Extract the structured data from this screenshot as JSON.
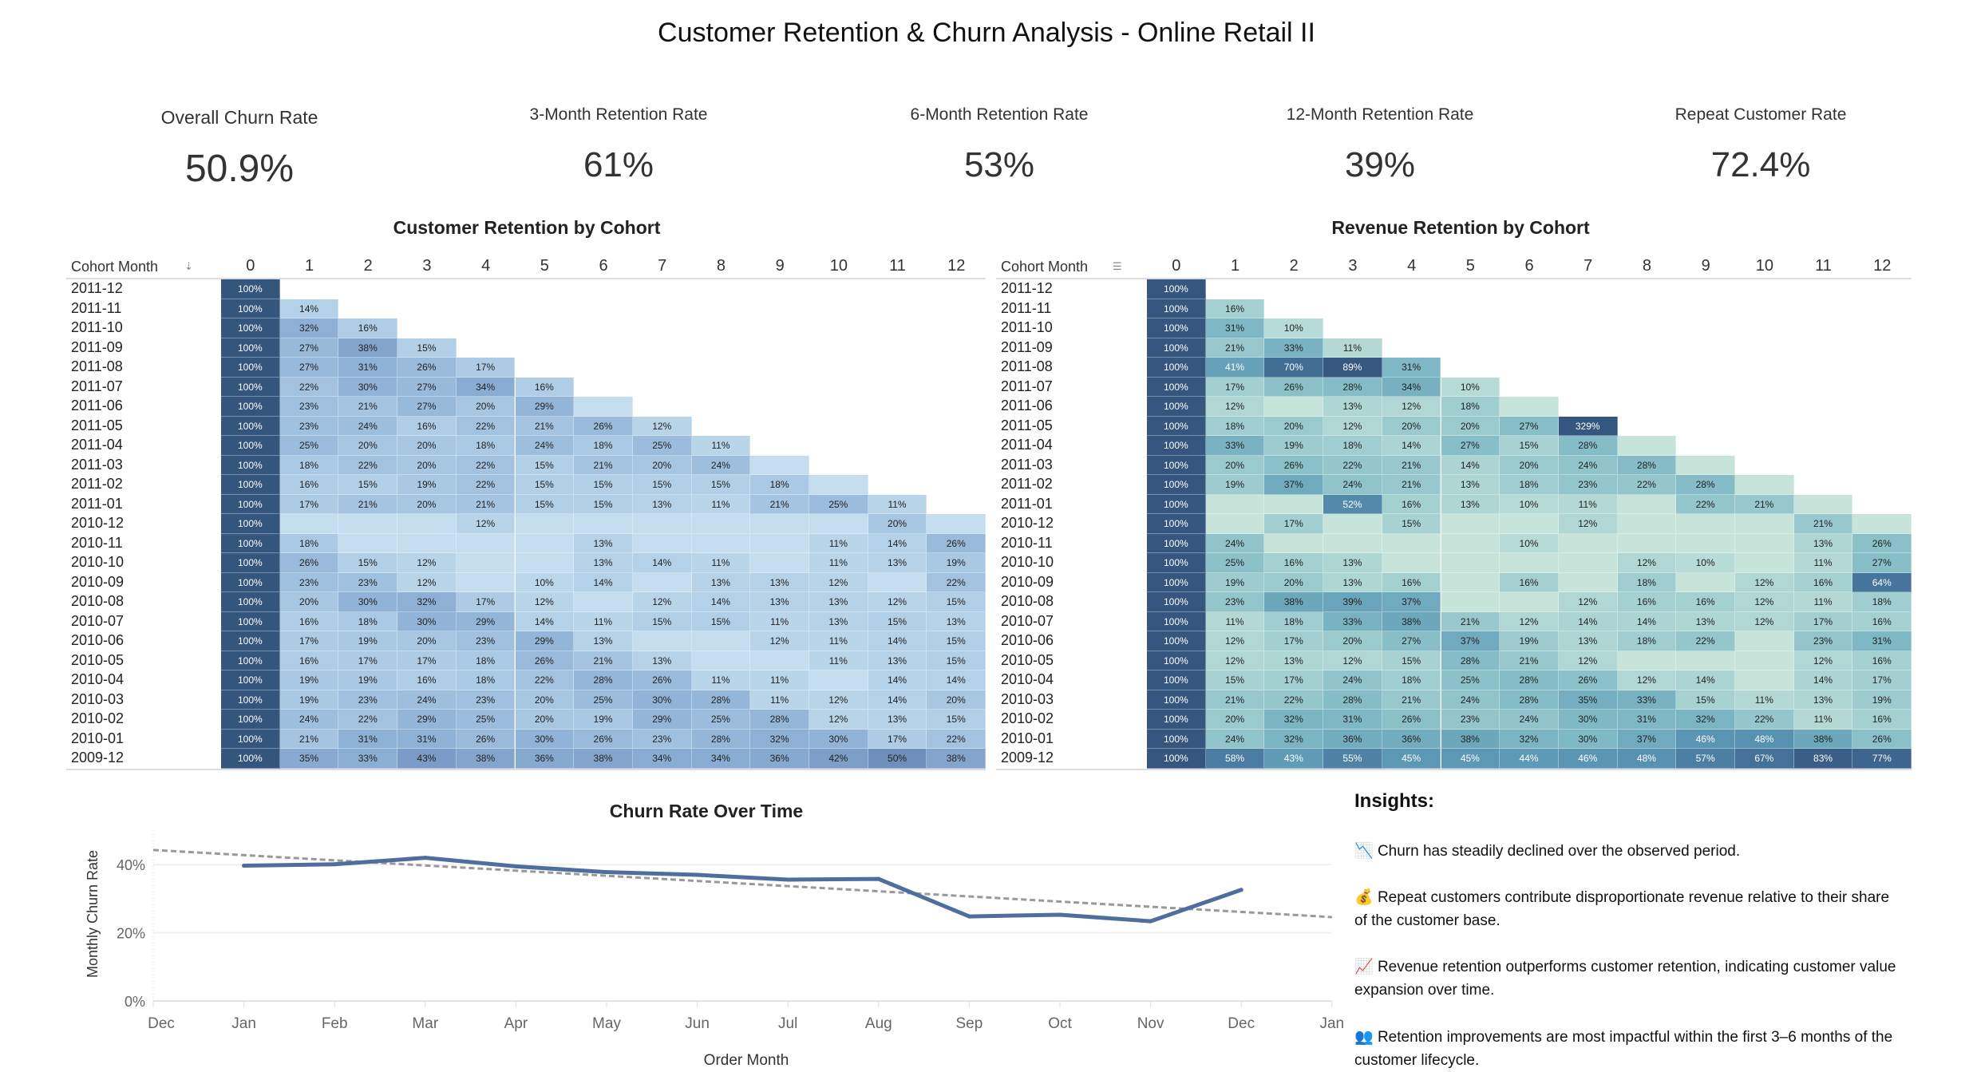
{
  "title": "Customer Retention & Churn Analysis - Online Retail II",
  "kpis": [
    {
      "label": "Overall Churn Rate",
      "value": "50.9%"
    },
    {
      "label": "3-Month Retention Rate",
      "value": "61%"
    },
    {
      "label": "6-Month Retention Rate",
      "value": "53%"
    },
    {
      "label": "12-Month Retention Rate",
      "value": "39%"
    },
    {
      "label": "Repeat Customer Rate",
      "value": "72.4%"
    }
  ],
  "colors": {
    "customer_dark": "#34557c",
    "customer_light": "#c4deef",
    "revenue_light": "#c6e4da",
    "revenue_dark": "#34557e",
    "line": "#4e6f9e",
    "trend": "#999999"
  },
  "chart_data": [
    {
      "type": "heatmap",
      "title": "Customer Retention by Cohort",
      "row_header": "Cohort Month",
      "sort_icon": "sort-descending-icon",
      "columns": [
        "0",
        "1",
        "2",
        "3",
        "4",
        "5",
        "6",
        "7",
        "8",
        "9",
        "10",
        "11",
        "12"
      ],
      "rows": [
        "2011-12",
        "2011-11",
        "2011-10",
        "2011-09",
        "2011-08",
        "2011-07",
        "2011-06",
        "2011-05",
        "2011-04",
        "2011-03",
        "2011-02",
        "2011-01",
        "2010-12",
        "2010-11",
        "2010-10",
        "2010-09",
        "2010-08",
        "2010-07",
        "2010-06",
        "2010-05",
        "2010-04",
        "2010-03",
        "2010-02",
        "2010-01",
        "2009-12"
      ],
      "unit": "%",
      "note": "null = cell present, label hidden (below 10%)",
      "values": [
        [
          100
        ],
        [
          100,
          14
        ],
        [
          100,
          32,
          16
        ],
        [
          100,
          27,
          38,
          15
        ],
        [
          100,
          27,
          31,
          26,
          17
        ],
        [
          100,
          22,
          30,
          27,
          34,
          16
        ],
        [
          100,
          23,
          21,
          27,
          20,
          29,
          null
        ],
        [
          100,
          23,
          24,
          16,
          22,
          21,
          26,
          12
        ],
        [
          100,
          25,
          20,
          20,
          18,
          24,
          18,
          25,
          11
        ],
        [
          100,
          18,
          22,
          20,
          22,
          15,
          21,
          20,
          24,
          null
        ],
        [
          100,
          16,
          15,
          19,
          22,
          15,
          15,
          15,
          15,
          18,
          null
        ],
        [
          100,
          17,
          21,
          20,
          21,
          15,
          15,
          13,
          11,
          21,
          25,
          11
        ],
        [
          100,
          null,
          null,
          null,
          12,
          null,
          null,
          null,
          null,
          null,
          null,
          20,
          null
        ],
        [
          100,
          18,
          null,
          null,
          null,
          null,
          13,
          null,
          null,
          null,
          11,
          14,
          26
        ],
        [
          100,
          26,
          15,
          12,
          null,
          null,
          13,
          14,
          11,
          null,
          11,
          13,
          19
        ],
        [
          100,
          23,
          23,
          12,
          null,
          10,
          14,
          null,
          13,
          13,
          12,
          null,
          22
        ],
        [
          100,
          20,
          30,
          32,
          17,
          12,
          null,
          12,
          14,
          13,
          13,
          12,
          15
        ],
        [
          100,
          16,
          18,
          30,
          29,
          14,
          11,
          15,
          15,
          11,
          13,
          15,
          13
        ],
        [
          100,
          17,
          19,
          20,
          23,
          29,
          13,
          null,
          null,
          12,
          11,
          14,
          15
        ],
        [
          100,
          16,
          17,
          17,
          18,
          26,
          21,
          13,
          null,
          null,
          11,
          13,
          15
        ],
        [
          100,
          19,
          19,
          16,
          18,
          22,
          28,
          26,
          11,
          11,
          null,
          14,
          14
        ],
        [
          100,
          19,
          23,
          24,
          23,
          20,
          25,
          30,
          28,
          11,
          12,
          14,
          20
        ],
        [
          100,
          24,
          22,
          29,
          25,
          20,
          19,
          29,
          25,
          28,
          12,
          13,
          15
        ],
        [
          100,
          21,
          31,
          31,
          26,
          30,
          26,
          23,
          28,
          32,
          30,
          17,
          22
        ],
        [
          100,
          35,
          33,
          43,
          38,
          36,
          38,
          34,
          34,
          36,
          42,
          50,
          38
        ]
      ]
    },
    {
      "type": "heatmap",
      "title": "Revenue Retention by Cohort",
      "row_header": "Cohort Month",
      "sort_icon": "sort-icon",
      "columns": [
        "0",
        "1",
        "2",
        "3",
        "4",
        "5",
        "6",
        "7",
        "8",
        "9",
        "10",
        "11",
        "12"
      ],
      "rows": [
        "2011-12",
        "2011-11",
        "2011-10",
        "2011-09",
        "2011-08",
        "2011-07",
        "2011-06",
        "2011-05",
        "2011-04",
        "2011-03",
        "2011-02",
        "2011-01",
        "2010-12",
        "2010-11",
        "2010-10",
        "2010-09",
        "2010-08",
        "2010-07",
        "2010-06",
        "2010-05",
        "2010-04",
        "2010-03",
        "2010-02",
        "2010-01",
        "2009-12"
      ],
      "unit": "%",
      "note": "null = cell present, label hidden (below 10%)",
      "values": [
        [
          100
        ],
        [
          100,
          16
        ],
        [
          100,
          31,
          10
        ],
        [
          100,
          21,
          33,
          11
        ],
        [
          100,
          41,
          70,
          89,
          31
        ],
        [
          100,
          17,
          26,
          28,
          34,
          10
        ],
        [
          100,
          12,
          null,
          13,
          12,
          18,
          null
        ],
        [
          100,
          18,
          20,
          12,
          20,
          20,
          27,
          329
        ],
        [
          100,
          33,
          19,
          18,
          14,
          27,
          15,
          28,
          null
        ],
        [
          100,
          20,
          26,
          22,
          21,
          14,
          20,
          24,
          28,
          null
        ],
        [
          100,
          19,
          37,
          24,
          21,
          13,
          18,
          23,
          22,
          28,
          null
        ],
        [
          100,
          null,
          null,
          52,
          16,
          13,
          10,
          11,
          null,
          22,
          21,
          null
        ],
        [
          100,
          null,
          17,
          null,
          15,
          null,
          null,
          12,
          null,
          null,
          null,
          21,
          null
        ],
        [
          100,
          24,
          null,
          null,
          null,
          null,
          10,
          null,
          null,
          null,
          null,
          13,
          26
        ],
        [
          100,
          25,
          16,
          13,
          null,
          null,
          null,
          null,
          12,
          10,
          null,
          11,
          27
        ],
        [
          100,
          19,
          20,
          13,
          16,
          null,
          16,
          null,
          18,
          null,
          12,
          16,
          64
        ],
        [
          100,
          23,
          38,
          39,
          37,
          null,
          null,
          12,
          16,
          16,
          12,
          11,
          18
        ],
        [
          100,
          11,
          18,
          33,
          38,
          21,
          12,
          14,
          14,
          13,
          12,
          17,
          16
        ],
        [
          100,
          12,
          17,
          20,
          27,
          37,
          19,
          13,
          18,
          22,
          null,
          23,
          31
        ],
        [
          100,
          12,
          13,
          12,
          15,
          28,
          21,
          12,
          null,
          null,
          null,
          12,
          16
        ],
        [
          100,
          15,
          17,
          24,
          18,
          25,
          28,
          26,
          12,
          14,
          null,
          14,
          17
        ],
        [
          100,
          21,
          22,
          28,
          21,
          24,
          28,
          35,
          33,
          15,
          11,
          13,
          19
        ],
        [
          100,
          20,
          32,
          31,
          26,
          23,
          24,
          30,
          31,
          32,
          22,
          11,
          16
        ],
        [
          100,
          24,
          32,
          36,
          36,
          38,
          32,
          30,
          37,
          46,
          48,
          38,
          26
        ],
        [
          100,
          58,
          43,
          55,
          45,
          45,
          44,
          46,
          48,
          57,
          67,
          83,
          77
        ]
      ]
    },
    {
      "type": "line",
      "title": "Churn Rate Over Time",
      "xlabel": "Order Month",
      "ylabel": "Monthly Churn Rate",
      "x_ticks": [
        "Dec",
        "Jan",
        "Feb",
        "Mar",
        "Apr",
        "May",
        "Jun",
        "Jul",
        "Aug",
        "Sep",
        "Oct",
        "Nov",
        "Dec",
        "Jan"
      ],
      "y_ticks": [
        "0%",
        "20%",
        "40%"
      ],
      "y_tick_values": [
        0,
        20,
        40
      ],
      "ylim": [
        -2,
        50
      ],
      "grid": true,
      "series": [
        {
          "name": "Monthly Churn Rate",
          "x": [
            1,
            2,
            3,
            4,
            5,
            6,
            7,
            8,
            9,
            10,
            11,
            12
          ],
          "values": [
            39.7,
            40.1,
            42.0,
            39.5,
            37.8,
            37.0,
            35.6,
            35.8,
            24.8,
            25.3,
            23.4,
            32.6
          ]
        }
      ],
      "trend_line": {
        "style": "dashed",
        "x": [
          0,
          13
        ],
        "values": [
          44.3,
          24.6
        ]
      }
    }
  ],
  "insights": {
    "title": "Insights:",
    "items": [
      {
        "icon": "📉",
        "text": "Churn has steadily declined over the observed period."
      },
      {
        "icon": "💰",
        "text": "Repeat customers contribute disproportionate revenue relative to their share of the customer base."
      },
      {
        "icon": "📈",
        "text": "Revenue retention outperforms customer retention, indicating customer value expansion over time."
      },
      {
        "icon": "👥",
        "text": "Retention improvements are most impactful within the first 3–6 months of the customer lifecycle."
      }
    ]
  }
}
